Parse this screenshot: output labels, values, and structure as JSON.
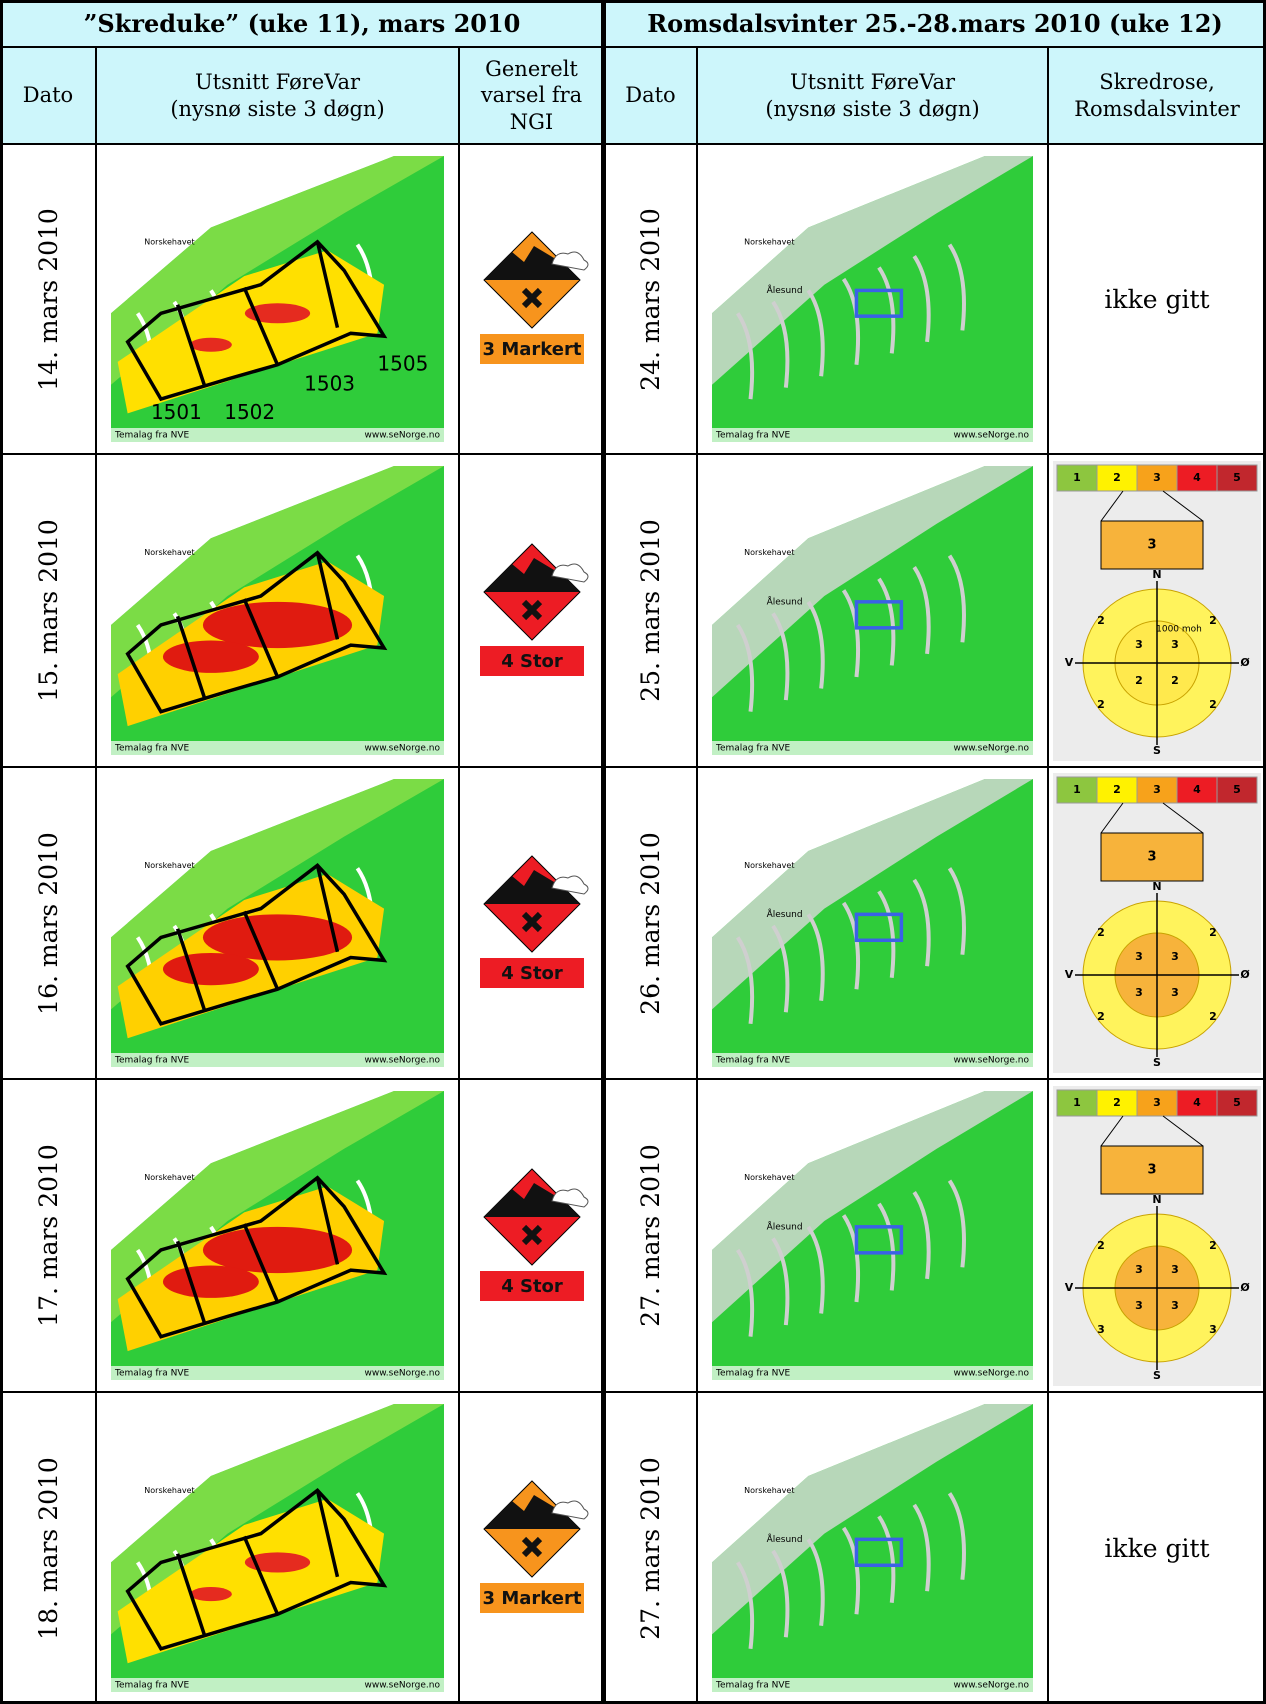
{
  "header": {
    "left_group": "”Skreduke” (uke 11), mars 2010",
    "right_group": "Romsdalsvinter 25.-28.mars 2010 (uke 12)"
  },
  "columns": [
    "Dato",
    "Utsnitt FøreVar\n(nysnø siste 3 døgn)",
    "Generelt\nvarsel fra\nNGI",
    "Dato",
    "Utsnitt FøreVar\n(nysnø siste 3 døgn)",
    "Skredrose,\nRomsdalsvinter"
  ],
  "rows": [
    {
      "date_left": "14. mars 2010",
      "map_left": {
        "sea": "Norskehavet",
        "credit": "Temalag fra NVE",
        "site": "www.seNorge.no",
        "regions": [
          "1501",
          "1502",
          "1503",
          "1505"
        ]
      },
      "warning": {
        "label": "3 Markert",
        "color": "#f7941d"
      },
      "date_right": "24. mars 2010",
      "map_right": {
        "sea": "Norskehavet",
        "town": "Ålesund",
        "credit": "Temalag fra NVE",
        "site": "www.seNorge.no"
      },
      "skredrose": "ikke gitt"
    },
    {
      "date_left": "15. mars 2010",
      "map_left": {
        "sea": "Norskehavet",
        "credit": "Temalag fra NVE",
        "site": "www.seNorge.no"
      },
      "warning": {
        "label": "4 Stor",
        "color": "#ed1c24"
      },
      "date_right": "25. mars 2010",
      "map_right": {
        "sea": "Norskehavet",
        "town": "Ålesund",
        "credit": "Temalag fra NVE",
        "site": "www.seNorge.no"
      },
      "skredrose": {
        "scale": [
          "1",
          "2",
          "3",
          "4",
          "5"
        ],
        "level": "3",
        "north": "N",
        "west": "V",
        "east": "Ø",
        "south": "S",
        "altitude": "1000 moh",
        "inner": [
          "3",
          "3",
          "2",
          "2"
        ],
        "outer": [
          "2",
          "2",
          "2",
          "2"
        ],
        "inner_color": "#ffe94d",
        "outer_color": "#fff35c"
      }
    },
    {
      "date_left": "16. mars 2010",
      "map_left": {
        "sea": "Norskehavet",
        "credit": "Temalag fra NVE",
        "site": "www.seNorge.no"
      },
      "warning": {
        "label": "4 Stor",
        "color": "#ed1c24"
      },
      "date_right": "26. mars 2010",
      "map_right": {
        "sea": "Norskehavet",
        "town": "Ålesund",
        "credit": "Temalag fra NVE",
        "site": "www.seNorge.no"
      },
      "skredrose": {
        "scale": [
          "1",
          "2",
          "3",
          "4",
          "5"
        ],
        "level": "3",
        "north": "N",
        "west": "V",
        "east": "Ø",
        "south": "S",
        "inner": [
          "3",
          "3",
          "3",
          "3"
        ],
        "outer": [
          "2",
          "2",
          "2",
          "2"
        ],
        "inner_color": "#f7b33b",
        "outer_color": "#fff35c"
      }
    },
    {
      "date_left": "17. mars 2010",
      "map_left": {
        "sea": "Norskehavet",
        "credit": "Temalag fra NVE",
        "site": "www.seNorge.no"
      },
      "warning": {
        "label": "4 Stor",
        "color": "#ed1c24"
      },
      "date_right": "27. mars 2010",
      "map_right": {
        "sea": "Norskehavet",
        "town": "Ålesund",
        "credit": "Temalag fra NVE",
        "site": "www.seNorge.no"
      },
      "skredrose": {
        "scale": [
          "1",
          "2",
          "3",
          "4",
          "5"
        ],
        "level": "3",
        "north": "N",
        "west": "V",
        "east": "Ø",
        "south": "S",
        "inner": [
          "3",
          "3",
          "3",
          "3"
        ],
        "outer": [
          "2",
          "2",
          "3",
          "3"
        ],
        "inner_color": "#f7b33b",
        "outer_color": "#fff35c"
      }
    },
    {
      "date_left": "18. mars 2010",
      "map_left": {
        "sea": "Norskehavet",
        "credit": "Temalag fra NVE",
        "site": "www.seNorge.no"
      },
      "warning": {
        "label": "3 Markert",
        "color": "#f7941d"
      },
      "date_right": "27. mars 2010",
      "map_right": {
        "sea": "Norskehavet",
        "town": "Ålesund",
        "credit": "Temalag fra NVE",
        "site": "www.seNorge.no"
      },
      "skredrose": "ikke gitt"
    }
  ]
}
